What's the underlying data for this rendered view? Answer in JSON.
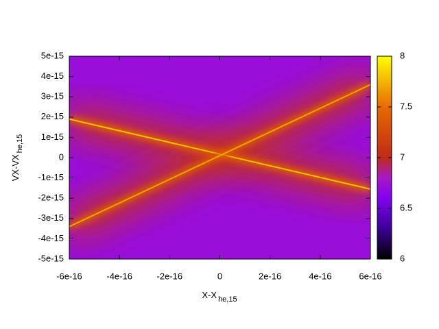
{
  "chart_data": {
    "type": "heatmap",
    "xlabel": {
      "text": "X-X",
      "subscript": "he,15"
    },
    "ylabel": {
      "text": "VX-VX",
      "subscript": "he,15"
    },
    "xlim": [
      -6e-16,
      6e-16
    ],
    "xticks": [
      -6e-16,
      -4e-16,
      -2e-16,
      0,
      2e-16,
      4e-16,
      6e-16
    ],
    "ylim": [
      -5e-15,
      5e-15
    ],
    "yticks": [
      -5e-15,
      -4e-15,
      -3e-15,
      -2e-15,
      -1e-15,
      0,
      1e-15,
      2e-15,
      3e-15,
      4e-15,
      5e-15
    ],
    "cblim": [
      6,
      8
    ],
    "cbticks": [
      6,
      6.5,
      7,
      7.5,
      8
    ],
    "colormap": [
      [
        6,
        "#000000"
      ],
      [
        6.3,
        "#3c0096"
      ],
      [
        6.6,
        "#8200f0"
      ],
      [
        6.8,
        "#a818c8"
      ],
      [
        7,
        "#c02a18"
      ],
      [
        7.5,
        "#e86a00"
      ],
      [
        8,
        "#ffff00"
      ]
    ],
    "background_level": 6.72,
    "halo_level": 7.05,
    "ridges": [
      {
        "x": [
          -6e-16,
          6e-16
        ],
        "y": [
          1.9e-15,
          -1.55e-15
        ],
        "level": 7.8
      },
      {
        "x": [
          -6e-16,
          6e-16
        ],
        "y": [
          -3.4e-15,
          3.6e-15
        ],
        "level": 7.7
      }
    ]
  }
}
